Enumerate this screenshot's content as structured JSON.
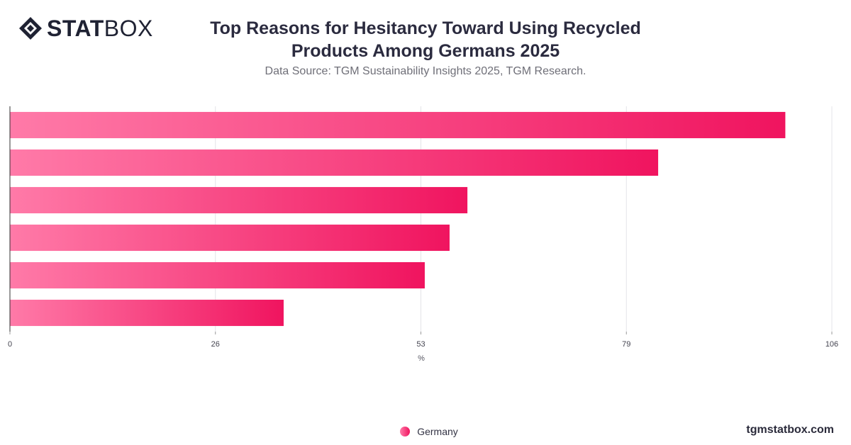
{
  "brand": {
    "logo_bold": "STAT",
    "logo_light": "BOX",
    "footer": "tgmstatbox.com"
  },
  "header": {
    "title": "Top Reasons for Hesitancy Toward Using Recycled Products Among Germans 2025",
    "subtitle": "Data Source: TGM Sustainability Insights 2025, TGM Research."
  },
  "colors": {
    "bar_start": "#ff7aa8",
    "bar_end": "#f0145f",
    "grid": "#e4e4e8",
    "axis": "#333333"
  },
  "chart_data": {
    "type": "bar",
    "orientation": "horizontal",
    "title": "Top Reasons for Hesitancy Toward Using Recycled Products Among Germans 2025",
    "subtitle": "Data Source: TGM Sustainability Insights 2025, TGM Research.",
    "xlabel": "%",
    "ylabel": "",
    "categories": [
      "",
      "",
      "",
      "",
      "",
      ""
    ],
    "series": [
      {
        "name": "Germany",
        "values": [
          100,
          83.6,
          59,
          56.7,
          53.5,
          35.3
        ]
      }
    ],
    "xticks": [
      "0",
      "26",
      "53",
      "79",
      "106"
    ],
    "xtick_values": [
      0,
      26.5,
      53,
      79.5,
      106
    ],
    "xlim": [
      0,
      106
    ],
    "grid": "vertical",
    "legend": "bottom-center"
  }
}
